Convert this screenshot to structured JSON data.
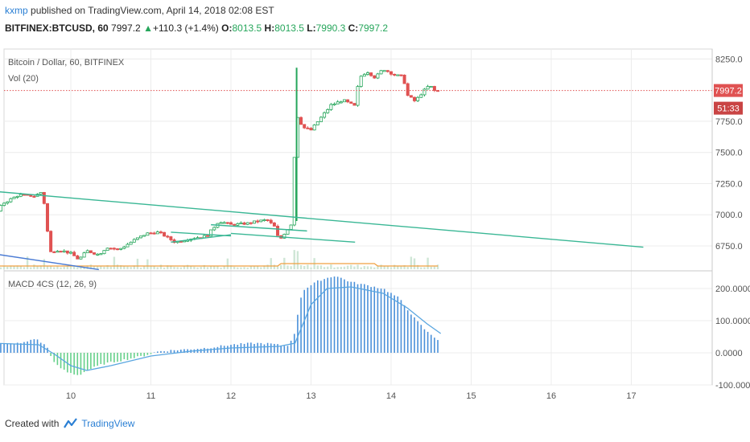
{
  "header": {
    "user": "kxmp",
    "published_text": "published on TradingView.com, April 14, 2018 02:08 EST",
    "symbol": "BITFINEX:BTCUSD, 60",
    "last": "7997.2",
    "change_icon": "triangle-up-icon",
    "change": "+110.3 (+1.4%)",
    "open_label": "O:",
    "open": "8013.5",
    "high_label": "H:",
    "high": "8013.5",
    "low_label": "L:",
    "low": "7990.3",
    "close_label": "C:",
    "close": "7997.2"
  },
  "footer": {
    "created_with": "Created with",
    "brand": "TradingView",
    "logo_icon": "tradingview-logo-icon"
  },
  "colors": {
    "up": "#26a65b",
    "down": "#e05252",
    "trend": "#3ab795",
    "lower_trend": "#4a7bd4",
    "price_line": "#e05252",
    "macd": "#5aa6e0",
    "histogram_pos": "#4a90d9",
    "histogram_neg": "#66d08a",
    "volume_ma": "#f0a040"
  },
  "chart_data": [
    {
      "type": "candlestick",
      "title": "Bitcoin / Dollar, 60, BITFINEX",
      "indicator_label": "Vol (20)",
      "y_ticks": [
        "8250.0",
        "7750.0",
        "7500.0",
        "7250.0",
        "7000.0",
        "6750.0"
      ],
      "ylim": [
        6550,
        8330
      ],
      "last_price_label": "7997.2",
      "countdown_label": "51:33",
      "x_ticks": [
        "10",
        "11",
        "12",
        "13",
        "14",
        "15",
        "16",
        "17"
      ],
      "close_path": [
        {
          "d": 9.0,
          "p": 6950
        },
        {
          "d": 9.15,
          "p": 7090
        },
        {
          "d": 9.35,
          "p": 7160
        },
        {
          "d": 9.55,
          "p": 7150
        },
        {
          "d": 9.65,
          "p": 7190
        },
        {
          "d": 9.7,
          "p": 6900
        },
        {
          "d": 9.75,
          "p": 6700
        },
        {
          "d": 9.85,
          "p": 6720
        },
        {
          "d": 10.0,
          "p": 6690
        },
        {
          "d": 10.1,
          "p": 6640
        },
        {
          "d": 10.2,
          "p": 6710
        },
        {
          "d": 10.35,
          "p": 6680
        },
        {
          "d": 10.45,
          "p": 6740
        },
        {
          "d": 10.6,
          "p": 6720
        },
        {
          "d": 10.8,
          "p": 6800
        },
        {
          "d": 10.95,
          "p": 6850
        },
        {
          "d": 11.1,
          "p": 6860
        },
        {
          "d": 11.3,
          "p": 6780
        },
        {
          "d": 11.5,
          "p": 6810
        },
        {
          "d": 11.7,
          "p": 6830
        },
        {
          "d": 11.85,
          "p": 6950
        },
        {
          "d": 12.0,
          "p": 6920
        },
        {
          "d": 12.2,
          "p": 6930
        },
        {
          "d": 12.35,
          "p": 6950
        },
        {
          "d": 12.45,
          "p": 6960
        },
        {
          "d": 12.55,
          "p": 6900
        },
        {
          "d": 12.6,
          "p": 6790
        },
        {
          "d": 12.7,
          "p": 6880
        },
        {
          "d": 12.78,
          "p": 6950
        },
        {
          "d": 12.8,
          "p": 7830
        },
        {
          "d": 12.9,
          "p": 7700
        },
        {
          "d": 13.0,
          "p": 7680
        },
        {
          "d": 13.1,
          "p": 7760
        },
        {
          "d": 13.25,
          "p": 7880
        },
        {
          "d": 13.4,
          "p": 7920
        },
        {
          "d": 13.55,
          "p": 7870
        },
        {
          "d": 13.6,
          "p": 8100
        },
        {
          "d": 13.7,
          "p": 8150
        },
        {
          "d": 13.8,
          "p": 8100
        },
        {
          "d": 13.9,
          "p": 8170
        },
        {
          "d": 14.05,
          "p": 8120
        },
        {
          "d": 14.15,
          "p": 8110
        },
        {
          "d": 14.2,
          "p": 7960
        },
        {
          "d": 14.3,
          "p": 7910
        },
        {
          "d": 14.4,
          "p": 7990
        },
        {
          "d": 14.48,
          "p": 8040
        },
        {
          "d": 14.55,
          "p": 7990
        },
        {
          "d": 14.62,
          "p": 7997
        }
      ],
      "spike": {
        "d": 12.82,
        "high": 8180,
        "low": 6950
      },
      "trendlines": [
        {
          "name": "upper-trendline",
          "from": [
            9.0,
            7190
          ],
          "to": [
            17.15,
            6740
          ]
        },
        {
          "name": "lower-trendline",
          "from": [
            9.0,
            6690
          ],
          "to": [
            10.35,
            6560
          ]
        },
        {
          "name": "flag-upper",
          "from": [
            11.25,
            6860
          ],
          "to": [
            12.0,
            6830
          ]
        },
        {
          "name": "flag-lower",
          "from": [
            11.25,
            6780
          ],
          "to": [
            12.0,
            6840
          ]
        },
        {
          "name": "channel-upper",
          "from": [
            11.75,
            6920
          ],
          "to": [
            12.95,
            6870
          ]
        },
        {
          "name": "channel-lower",
          "from": [
            12.0,
            6850
          ],
          "to": [
            13.55,
            6780
          ]
        }
      ]
    },
    {
      "type": "bar",
      "title": "MACD 4CS (12, 26, 9)",
      "y_ticks": [
        "200.0000",
        "100.0000",
        "0.0000",
        "-100.0000"
      ],
      "ylim": [
        -100,
        255
      ],
      "histogram": [
        {
          "d": 9.0,
          "v": 25
        },
        {
          "d": 9.4,
          "v": 30
        },
        {
          "d": 9.55,
          "v": 45
        },
        {
          "d": 9.7,
          "v": 20
        },
        {
          "d": 9.8,
          "v": -35
        },
        {
          "d": 9.95,
          "v": -60
        },
        {
          "d": 10.1,
          "v": -70
        },
        {
          "d": 10.2,
          "v": -55
        },
        {
          "d": 10.4,
          "v": -35
        },
        {
          "d": 10.6,
          "v": -25
        },
        {
          "d": 10.9,
          "v": -10
        },
        {
          "d": 11.1,
          "v": 5
        },
        {
          "d": 11.4,
          "v": 10
        },
        {
          "d": 11.7,
          "v": 15
        },
        {
          "d": 12.0,
          "v": 25
        },
        {
          "d": 12.3,
          "v": 30
        },
        {
          "d": 12.5,
          "v": 28
        },
        {
          "d": 12.7,
          "v": 20
        },
        {
          "d": 12.8,
          "v": 60
        },
        {
          "d": 12.85,
          "v": 150
        },
        {
          "d": 12.9,
          "v": 195
        },
        {
          "d": 13.1,
          "v": 225
        },
        {
          "d": 13.3,
          "v": 240
        },
        {
          "d": 13.5,
          "v": 220
        },
        {
          "d": 13.7,
          "v": 210
        },
        {
          "d": 13.9,
          "v": 200
        },
        {
          "d": 14.1,
          "v": 170
        },
        {
          "d": 14.3,
          "v": 105
        },
        {
          "d": 14.45,
          "v": 65
        },
        {
          "d": 14.62,
          "v": 35
        }
      ],
      "signal": [
        {
          "d": 9.0,
          "v": 30
        },
        {
          "d": 9.6,
          "v": 25
        },
        {
          "d": 9.8,
          "v": -5
        },
        {
          "d": 10.0,
          "v": -40
        },
        {
          "d": 10.2,
          "v": -55
        },
        {
          "d": 10.5,
          "v": -40
        },
        {
          "d": 11.0,
          "v": -10
        },
        {
          "d": 11.5,
          "v": 5
        },
        {
          "d": 12.0,
          "v": 15
        },
        {
          "d": 12.6,
          "v": 20
        },
        {
          "d": 12.8,
          "v": 30
        },
        {
          "d": 13.0,
          "v": 150
        },
        {
          "d": 13.2,
          "v": 200
        },
        {
          "d": 13.5,
          "v": 205
        },
        {
          "d": 13.9,
          "v": 185
        },
        {
          "d": 14.2,
          "v": 140
        },
        {
          "d": 14.45,
          "v": 90
        },
        {
          "d": 14.62,
          "v": 60
        }
      ]
    }
  ]
}
